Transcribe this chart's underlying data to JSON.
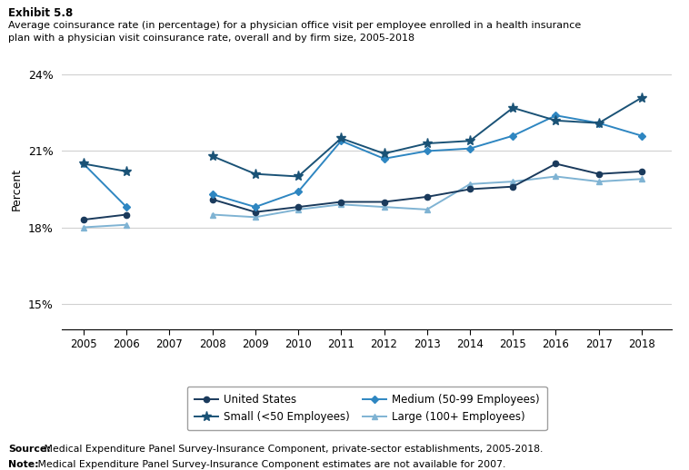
{
  "years": [
    2005,
    2006,
    2007,
    2008,
    2009,
    2010,
    2011,
    2012,
    2013,
    2014,
    2015,
    2016,
    2017,
    2018
  ],
  "united_states": [
    18.3,
    18.5,
    null,
    19.1,
    18.6,
    18.8,
    19.0,
    19.0,
    19.2,
    19.5,
    19.6,
    20.5,
    20.1,
    20.2
  ],
  "small": [
    20.5,
    20.2,
    null,
    20.8,
    20.1,
    20.0,
    21.5,
    20.9,
    21.3,
    21.4,
    22.7,
    22.2,
    22.1,
    23.1
  ],
  "medium": [
    20.5,
    18.8,
    null,
    19.3,
    18.8,
    19.4,
    21.4,
    20.7,
    21.0,
    21.1,
    21.6,
    22.4,
    22.1,
    21.6
  ],
  "large": [
    18.0,
    18.1,
    null,
    18.5,
    18.4,
    18.7,
    18.9,
    18.8,
    18.7,
    19.7,
    19.8,
    20.0,
    19.8,
    19.9
  ],
  "color_us": "#1a3a5c",
  "color_small": "#1a5276",
  "color_medium": "#2e86c1",
  "color_large": "#7fb3d3",
  "exhibit_label": "Exhibit 5.8",
  "title_line1": "Average coinsurance rate (in percentage) for a physician office visit per employee enrolled in a health insurance",
  "title_line2": "plan with a physician visit coinsurance rate, overall and by firm size, 2005-2018",
  "ylabel": "Percent",
  "yticks": [
    15,
    18,
    21,
    24
  ],
  "ytick_labels": [
    "15%",
    "18%",
    "21%",
    "24%"
  ],
  "ylim": [
    14.0,
    25.0
  ],
  "source_bold": "Source:",
  "source_rest": " Medical Expenditure Panel Survey-Insurance Component, private-sector establishments, 2005-2018.",
  "note_bold": "Note:",
  "note_rest": " Medical Expenditure Panel Survey-Insurance Component estimates are not available for 2007.",
  "legend_entries": [
    "United States",
    "Small (<50 Employees)",
    "Medium (50-99 Employees)",
    "Large (100+ Employees)"
  ]
}
